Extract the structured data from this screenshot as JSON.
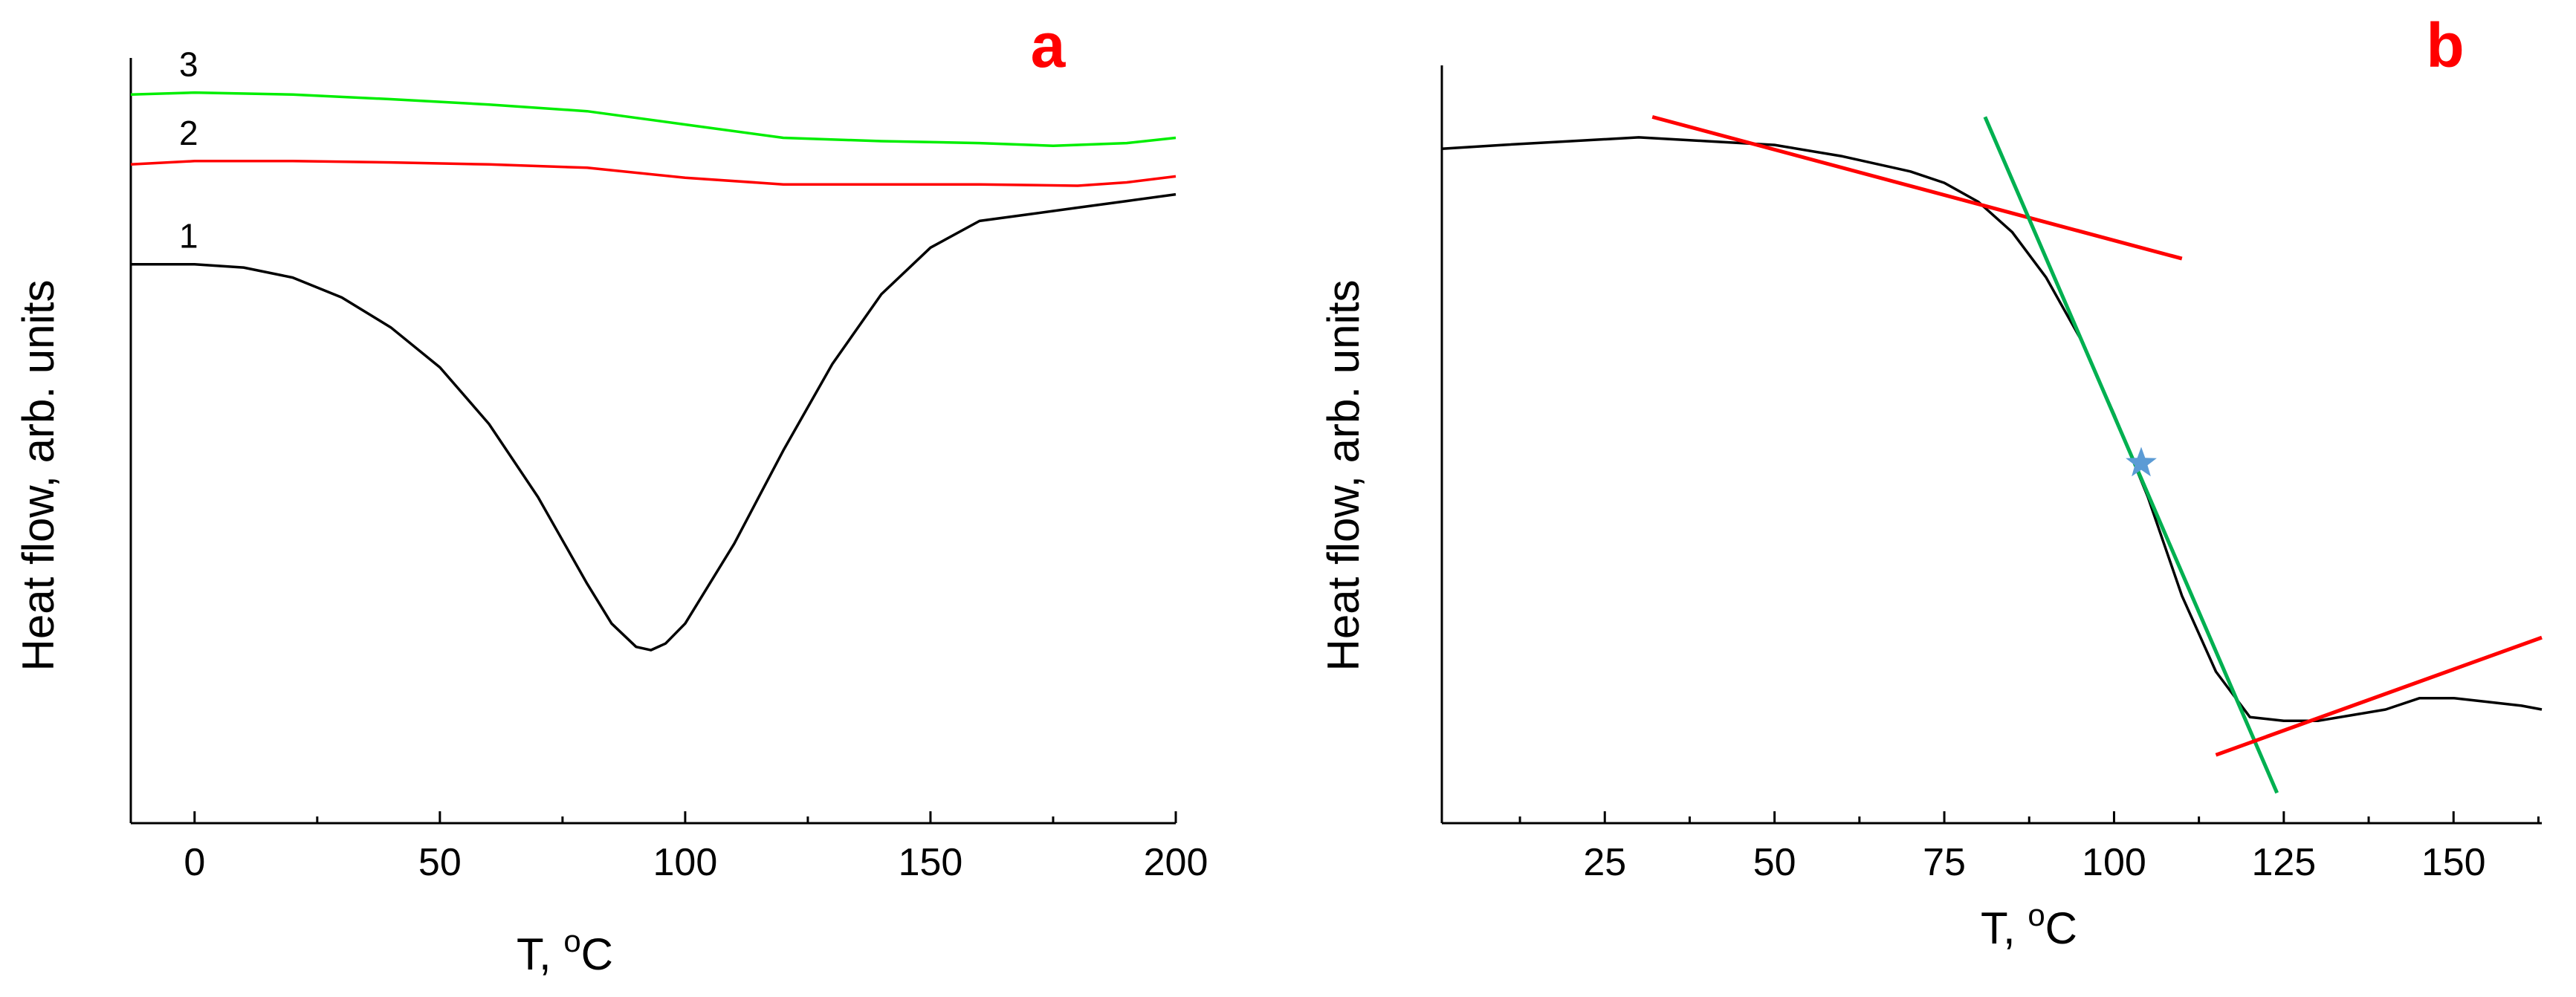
{
  "chart_data": [
    {
      "type": "line",
      "panel_label": "a",
      "panel_label_color": "#ff0000",
      "xlabel": "T, ",
      "xlabel_sup": "o",
      "xlabel_unit": "C",
      "ylabel": "Heat flow, arb. units",
      "xlim": [
        -13,
        200
      ],
      "ylim": [
        -10.5,
        1.0
      ],
      "x_ticks": [
        0,
        50,
        100,
        150,
        200
      ],
      "y_ticks_shown": false,
      "grid": false,
      "series": [
        {
          "label": "1",
          "color": "#000000",
          "points": [
            [
              -13,
              -2.1
            ],
            [
              0,
              -2.1
            ],
            [
              10,
              -2.15
            ],
            [
              20,
              -2.3
            ],
            [
              30,
              -2.6
            ],
            [
              40,
              -3.05
            ],
            [
              50,
              -3.65
            ],
            [
              60,
              -4.5
            ],
            [
              70,
              -5.6
            ],
            [
              80,
              -6.9
            ],
            [
              85,
              -7.5
            ],
            [
              90,
              -7.85
            ],
            [
              93,
              -7.9
            ],
            [
              96,
              -7.8
            ],
            [
              100,
              -7.5
            ],
            [
              110,
              -6.3
            ],
            [
              120,
              -4.9
            ],
            [
              130,
              -3.6
            ],
            [
              140,
              -2.55
            ],
            [
              150,
              -1.85
            ],
            [
              160,
              -1.45
            ],
            [
              170,
              -1.35
            ],
            [
              180,
              -1.25
            ],
            [
              190,
              -1.15
            ],
            [
              200,
              -1.05
            ]
          ]
        },
        {
          "label": "2",
          "color": "#ff0000",
          "points": [
            [
              -13,
              -0.6
            ],
            [
              0,
              -0.55
            ],
            [
              20,
              -0.55
            ],
            [
              40,
              -0.57
            ],
            [
              60,
              -0.6
            ],
            [
              80,
              -0.65
            ],
            [
              100,
              -0.8
            ],
            [
              120,
              -0.9
            ],
            [
              140,
              -0.9
            ],
            [
              160,
              -0.9
            ],
            [
              180,
              -0.92
            ],
            [
              190,
              -0.87
            ],
            [
              200,
              -0.78
            ]
          ]
        },
        {
          "label": "3",
          "color": "#00ee00",
          "points": [
            [
              -13,
              0.45
            ],
            [
              0,
              0.48
            ],
            [
              20,
              0.45
            ],
            [
              40,
              0.38
            ],
            [
              60,
              0.3
            ],
            [
              80,
              0.2
            ],
            [
              100,
              0.0
            ],
            [
              120,
              -0.2
            ],
            [
              140,
              -0.25
            ],
            [
              160,
              -0.28
            ],
            [
              175,
              -0.32
            ],
            [
              190,
              -0.28
            ],
            [
              200,
              -0.2
            ]
          ]
        }
      ]
    },
    {
      "type": "line",
      "panel_label": "b",
      "panel_label_color": "#ff0000",
      "xlabel": "T, ",
      "xlabel_sup": "o",
      "xlabel_unit": "C",
      "ylabel": "Heat flow, arb. units",
      "xlim": [
        1,
        163
      ],
      "ylim": [
        0.0,
        1.0
      ],
      "x_ticks": [
        25,
        50,
        75,
        100,
        125,
        150
      ],
      "y_ticks_shown": false,
      "grid": false,
      "series": [
        {
          "color": "#000000",
          "points": [
            [
              1,
              0.89
            ],
            [
              10,
              0.895
            ],
            [
              20,
              0.9
            ],
            [
              30,
              0.905
            ],
            [
              40,
              0.9
            ],
            [
              50,
              0.895
            ],
            [
              60,
              0.88
            ],
            [
              70,
              0.86
            ],
            [
              75,
              0.845
            ],
            [
              80,
              0.82
            ],
            [
              85,
              0.78
            ],
            [
              90,
              0.72
            ],
            [
              95,
              0.64
            ],
            [
              100,
              0.54
            ],
            [
              105,
              0.43
            ],
            [
              110,
              0.3
            ],
            [
              115,
              0.2
            ],
            [
              120,
              0.14
            ],
            [
              125,
              0.135
            ],
            [
              130,
              0.135
            ],
            [
              140,
              0.15
            ],
            [
              145,
              0.165
            ],
            [
              150,
              0.165
            ],
            [
              155,
              0.16
            ],
            [
              160,
              0.155
            ],
            [
              163,
              0.15
            ]
          ]
        }
      ],
      "tangent_lines": [
        {
          "color": "#ff0000",
          "x": [
            32,
            110
          ],
          "y": [
            0.932,
            0.745
          ]
        },
        {
          "color": "#00b050",
          "x": [
            81,
            124
          ],
          "y": [
            0.932,
            0.04
          ]
        },
        {
          "color": "#ff0000",
          "x": [
            115,
            163
          ],
          "y": [
            0.09,
            0.245
          ]
        }
      ],
      "marker": {
        "shape": "star",
        "color": "#5b9bd5",
        "x": 104,
        "y": 0.475
      }
    }
  ]
}
